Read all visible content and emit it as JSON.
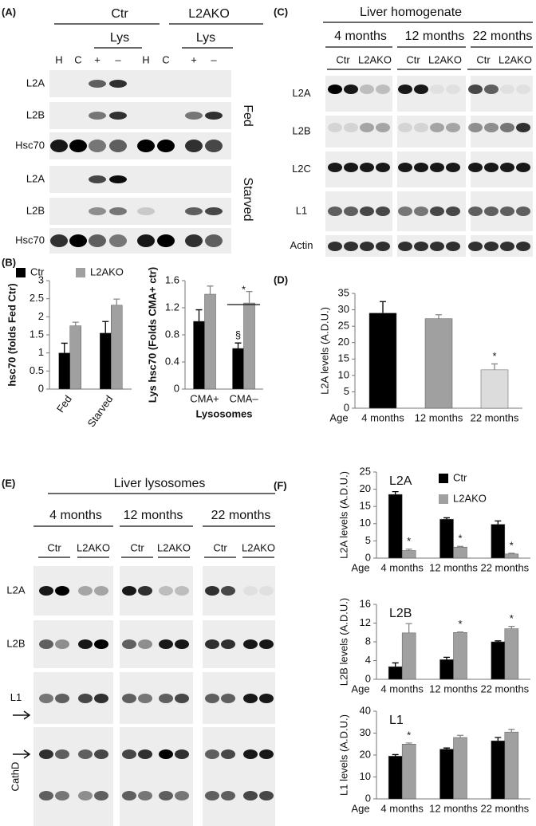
{
  "blots": {
    "A": {
      "label": "(A)",
      "groups": [
        "Ctr",
        "L2AKO"
      ],
      "subgroups": [
        "Lys",
        "Lys"
      ],
      "lanes": [
        "H",
        "C",
        "+",
        "–",
        "H",
        "C",
        "+",
        "–"
      ],
      "rows": [
        "L2A",
        "L2B",
        "Hsc70",
        "L2A",
        "L2B",
        "Hsc70"
      ],
      "conditions": [
        "Fed",
        "Starved"
      ]
    },
    "C": {
      "label": "(C)",
      "title": "Liver homogenate",
      "ages": [
        "4 months",
        "12 months",
        "22 months"
      ],
      "lanes": [
        "Ctr",
        "L2AKO",
        "Ctr",
        "L2AKO",
        "Ctr",
        "L2AKO"
      ],
      "rows": [
        "L2A",
        "L2B",
        "L2C",
        "L1",
        "Actin"
      ]
    },
    "E": {
      "label": "(E)",
      "title": "Liver lysosomes",
      "ages": [
        "4 months",
        "12 months",
        "22 months"
      ],
      "lanes": [
        "Ctr",
        "L2AKO",
        "Ctr",
        "L2AKO",
        "Ctr",
        "L2AKO"
      ],
      "rows": [
        "L2A",
        "L2B",
        "L1",
        "CathD"
      ]
    }
  },
  "chart_data": [
    {
      "type": "bar",
      "panel_label": "(B)",
      "ylabel": "hsc70 (folds Fed Ctr)",
      "categories": [
        "Fed",
        "Starved"
      ],
      "series": [
        {
          "name": "Ctr",
          "color": "#000000",
          "values": [
            1.0,
            1.55
          ],
          "errors": [
            0.27,
            0.32
          ]
        },
        {
          "name": "L2AKO",
          "color": "#a0a0a0",
          "values": [
            1.75,
            2.32
          ],
          "errors": [
            0.1,
            0.17
          ]
        }
      ],
      "ylim": [
        0,
        3
      ],
      "yticks": [
        0,
        0.5,
        1,
        1.5,
        2,
        2.5,
        3
      ]
    },
    {
      "type": "bar",
      "ylabel": "Lys hsc70 (Folds CMA+ ctr)",
      "xlabel": "Lysosomes",
      "categories": [
        "CMA+",
        "CMA–"
      ],
      "series": [
        {
          "color": "#000000",
          "values": [
            1.0,
            0.6
          ],
          "errors": [
            0.17,
            0.08
          ],
          "annotations": [
            null,
            "§"
          ]
        },
        {
          "color": "#a0a0a0",
          "values": [
            1.4,
            1.27
          ],
          "errors": [
            0.12,
            0.17
          ]
        }
      ],
      "group_annotations": [
        null,
        "*"
      ],
      "ylim": [
        0,
        1.6
      ],
      "yticks": [
        0,
        0.4,
        0.8,
        1.2,
        1.6
      ]
    },
    {
      "type": "bar",
      "panel_label": "(D)",
      "ylabel": "L2A levels (A.D.U.)",
      "xlabel": "Age",
      "categories": [
        "4 months",
        "12 months",
        "22 months"
      ],
      "values": [
        29,
        27.3,
        11.7
      ],
      "errors": [
        3.5,
        1.2,
        1.8
      ],
      "colors": [
        "#000000",
        "#a0a0a0",
        "#dcdcdc"
      ],
      "annotations": [
        null,
        null,
        "*"
      ],
      "ylim": [
        0,
        35
      ],
      "yticks": [
        0,
        5,
        10,
        15,
        20,
        25,
        30,
        35
      ]
    },
    {
      "type": "bar",
      "panel_label": "(F)",
      "title": "L2A",
      "ylabel": "L2A levels (A.D.U.)",
      "xlabel": "Age",
      "categories": [
        "4 months",
        "12 months",
        "22 months"
      ],
      "series": [
        {
          "name": "Ctr",
          "color": "#000000",
          "values": [
            18.5,
            11.3,
            9.8
          ],
          "errors": [
            0.8,
            0.4,
            1.0
          ]
        },
        {
          "name": "L2AKO",
          "color": "#a0a0a0",
          "values": [
            2.2,
            3.2,
            1.2
          ],
          "errors": [
            0.4,
            0.2,
            0.2
          ],
          "annotations": [
            "*",
            "*",
            "*"
          ]
        }
      ],
      "ylim": [
        0,
        25
      ],
      "yticks": [
        0,
        5,
        10,
        15,
        20,
        25
      ]
    },
    {
      "type": "bar",
      "title": "L2B",
      "ylabel": "L2B levels (A.D.U.)",
      "xlabel": "Age",
      "categories": [
        "4 months",
        "12 months",
        "22 months"
      ],
      "series": [
        {
          "color": "#000000",
          "values": [
            2.7,
            4.2,
            8.0
          ],
          "errors": [
            0.8,
            0.5,
            0.2
          ]
        },
        {
          "color": "#a0a0a0",
          "values": [
            9.9,
            10.0,
            10.8
          ],
          "errors": [
            2.0,
            0.1,
            0.5
          ],
          "annotations": [
            null,
            "*",
            "*"
          ]
        }
      ],
      "ylim": [
        0,
        16
      ],
      "yticks": [
        0,
        4,
        8,
        12,
        16
      ]
    },
    {
      "type": "bar",
      "title": "L1",
      "ylabel": "L1 levels (A.D.U.)",
      "xlabel": "Age",
      "categories": [
        "4 months",
        "12 months",
        "22 months"
      ],
      "series": [
        {
          "color": "#000000",
          "values": [
            19.5,
            22.7,
            26.5
          ],
          "errors": [
            0.7,
            0.5,
            1.5
          ]
        },
        {
          "color": "#a0a0a0",
          "values": [
            25,
            28,
            30.5
          ],
          "errors": [
            0.5,
            1.0,
            1.2
          ],
          "annotations": [
            "*",
            null,
            null
          ]
        }
      ],
      "ylim": [
        0,
        40
      ],
      "yticks": [
        0,
        10,
        20,
        30,
        40
      ]
    }
  ]
}
